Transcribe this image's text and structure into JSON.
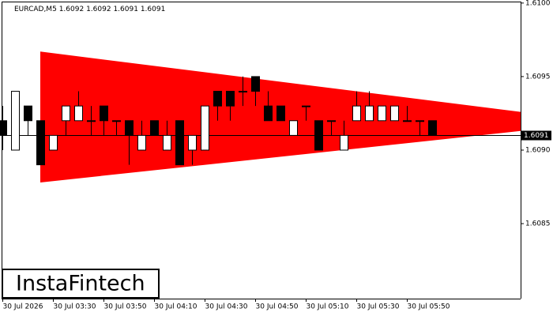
{
  "chart_data": {
    "type": "candlestick",
    "title": "EURCAD,M5",
    "logo": "InstaFintech",
    "categories": [
      "30 Jul 2026",
      null,
      null,
      null,
      "30 Jul 03:30",
      null,
      null,
      null,
      "30 Jul 03:50",
      null,
      null,
      null,
      "30 Jul 04:10",
      null,
      null,
      null,
      "30 Jul 04:30",
      null,
      null,
      null,
      "30 Jul 04:50",
      null,
      null,
      null,
      "30 Jul 05:10",
      null,
      null,
      null,
      "30 Jul 05:30",
      null,
      null,
      null,
      "30 Jul 05:50",
      null,
      null
    ],
    "open": [
      1.6092,
      1.609,
      1.6093,
      1.6092,
      1.609,
      1.6092,
      1.6092,
      1.6092,
      1.6093,
      1.6092,
      1.6092,
      1.609,
      1.6092,
      1.609,
      1.6092,
      1.609,
      1.609,
      1.6094,
      1.6094,
      1.6094,
      1.6095,
      1.6093,
      1.6093,
      1.6091,
      1.6093,
      1.6092,
      1.6092,
      1.609,
      1.6092,
      1.6092,
      1.6092,
      1.6092,
      1.6092,
      1.6092,
      1.6092
    ],
    "high": [
      1.6093,
      1.6094,
      1.6093,
      1.6092,
      1.6091,
      1.6093,
      1.6094,
      1.6093,
      1.6093,
      1.6092,
      1.6092,
      1.6092,
      1.6092,
      1.6092,
      1.6092,
      1.6091,
      1.6093,
      1.6094,
      1.6094,
      1.6095,
      1.6095,
      1.6094,
      1.6093,
      1.6092,
      1.6093,
      1.6092,
      1.6092,
      1.6092,
      1.6094,
      1.6094,
      1.6093,
      1.6093,
      1.6093,
      1.6092,
      1.6092
    ],
    "low": [
      1.609,
      1.609,
      1.6091,
      1.6089,
      1.609,
      1.6091,
      1.6092,
      1.6091,
      1.6091,
      1.6091,
      1.6089,
      1.609,
      1.6091,
      1.609,
      1.6089,
      1.6089,
      1.609,
      1.6092,
      1.6092,
      1.6093,
      1.6093,
      1.6092,
      1.6092,
      1.6091,
      1.6092,
      1.609,
      1.6091,
      1.609,
      1.6092,
      1.6092,
      1.6092,
      1.6092,
      1.6092,
      1.6091,
      1.6091
    ],
    "close": [
      1.6091,
      1.6094,
      1.6092,
      1.6089,
      1.6091,
      1.6093,
      1.6093,
      1.6092,
      1.6092,
      1.6092,
      1.6091,
      1.6091,
      1.6091,
      1.6091,
      1.6089,
      1.6091,
      1.6093,
      1.6093,
      1.6093,
      1.6094,
      1.6094,
      1.6092,
      1.6092,
      1.6092,
      1.6093,
      1.609,
      1.6092,
      1.6091,
      1.6093,
      1.6093,
      1.6093,
      1.6093,
      1.6092,
      1.6092,
      1.6091
    ],
    "up_color": "#ffffff",
    "down_color": "#000000",
    "ylim": [
      1.60799,
      1.61001
    ],
    "yticks": [
      1.6085,
      {
        "value": 1.609,
        "label": "1.6090"
      },
      1.6095,
      {
        "value": 1.61,
        "label": "1.6100"
      }
    ],
    "last_price": 1.6091,
    "pattern": {
      "color": "#ff0000",
      "x": [
        3,
        41
      ],
      "upper": [
        1.60967,
        1.60926
      ],
      "lower": [
        1.60878,
        1.60913
      ]
    }
  }
}
